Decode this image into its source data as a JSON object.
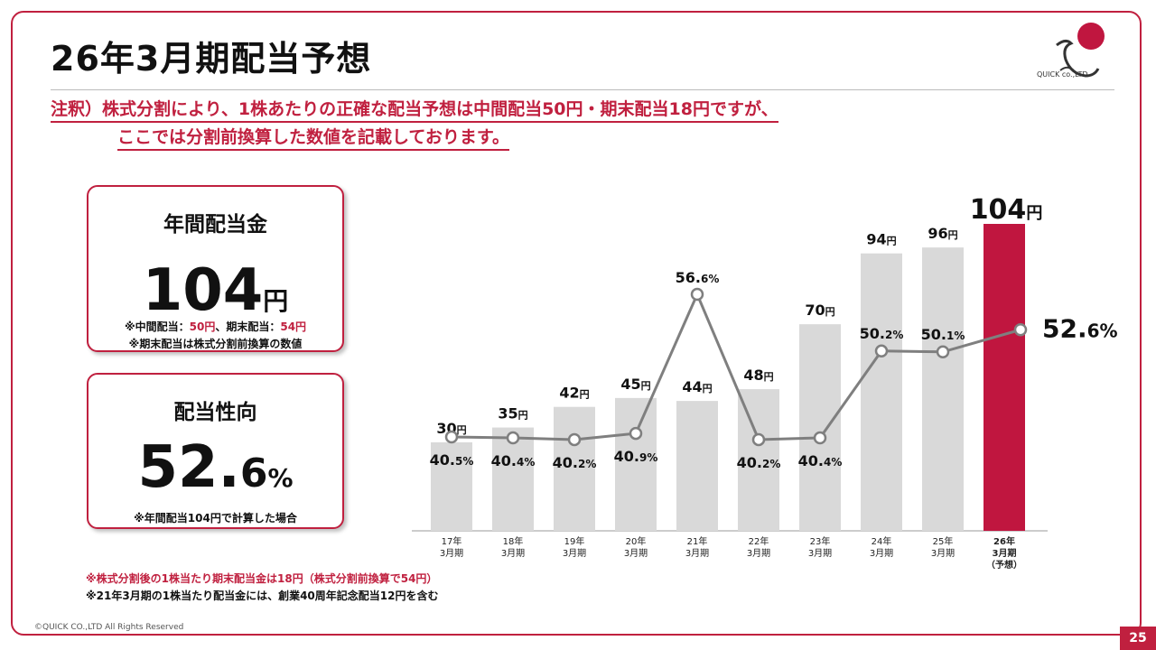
{
  "slide": {
    "title": "26年3月期配当予想",
    "logo_text": "QUICK co.,LTD",
    "note_line1": "注釈）株式分割により、1株あたりの正確な配当予想は中間配当50円・期末配当18円ですが、",
    "note_line2": "ここでは分割前換算した数値を記載しております。",
    "page_number": "25",
    "copyright": "©QUICK CO.,LTD All Rights Reserved"
  },
  "card_dividend": {
    "heading": "年間配当金",
    "value": "104",
    "unit": "円",
    "sub1_prefix": "※中間配当：",
    "sub1_interim": "50円",
    "sub1_mid": "、期末配当：",
    "sub1_year_end": "54円",
    "sub2": "※期末配当は株式分割前換算の数値"
  },
  "card_payout": {
    "heading": "配当性向",
    "value": "52.",
    "value_small": "6",
    "unit": "%",
    "sub": "※年間配当104円で計算した場合"
  },
  "footnotes": {
    "line1": "※株式分割後の1株当たり期末配当金は18円（株式分割前換算で54円）",
    "line2": "※21年3月期の1株当たり配当金には、創業40周年記念配当12円を含む"
  },
  "chart_data": {
    "type": "bar",
    "categories": [
      "17年\n3月期",
      "18年\n3月期",
      "19年\n3月期",
      "20年\n3月期",
      "21年\n3月期",
      "22年\n3月期",
      "23年\n3月期",
      "24年\n3月期",
      "25年\n3月期",
      "26年\n3月期\n（予想）"
    ],
    "series": [
      {
        "values": [
          30,
          35,
          42,
          45,
          44,
          48,
          70,
          94,
          96,
          104
        ],
        "unit": "円"
      },
      {
        "values": [
          40.5,
          40.4,
          40.2,
          40.9,
          56.6,
          40.2,
          40.4,
          50.2,
          50.1,
          52.6
        ],
        "unit": "%",
        "type": "line"
      }
    ],
    "bar_labels": [
      "30",
      "35",
      "42",
      "45",
      "44",
      "48",
      "70",
      "94",
      "96",
      "104"
    ],
    "line_labels": [
      "40.5",
      "40.4",
      "40.2",
      "40.9",
      "56.6",
      "40.2",
      "40.4",
      "50.2",
      "50.1",
      "52.6"
    ],
    "highlight_index": 9,
    "colors": {
      "bar": "#d9d9d9",
      "highlight": "#c0163f",
      "line": "#7f7f7f",
      "marker_fill": "#ffffff"
    }
  }
}
